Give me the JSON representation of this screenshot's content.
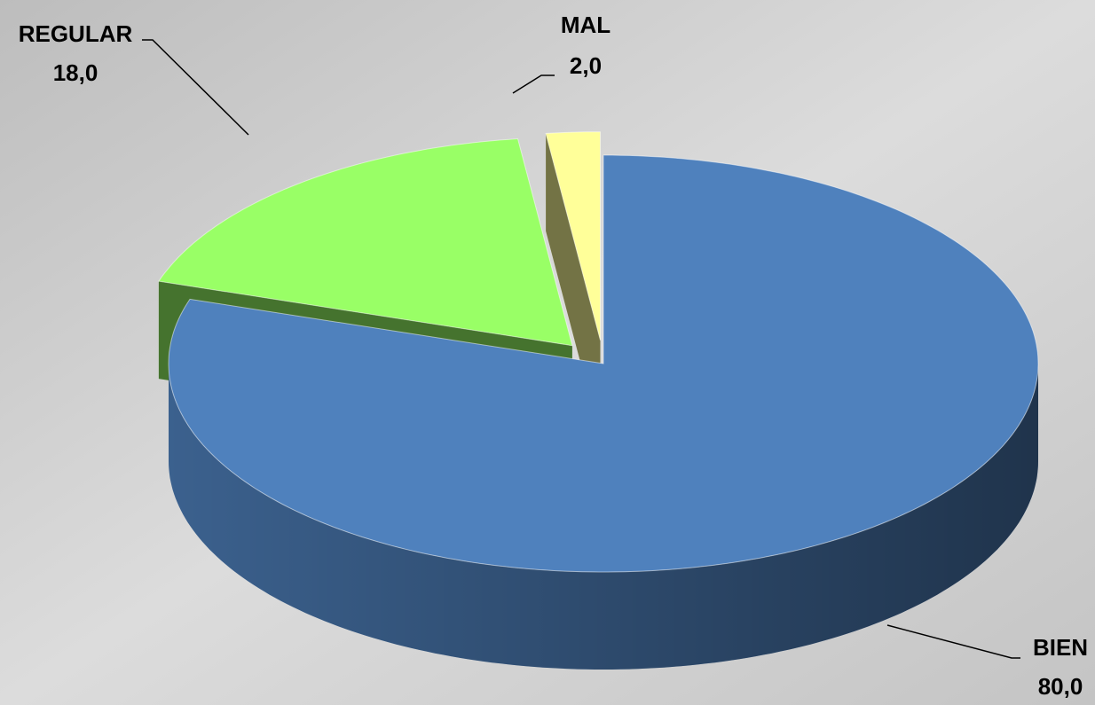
{
  "chart_data": {
    "type": "pie3d",
    "categories": [
      "BIEN",
      "REGULAR",
      "MAL"
    ],
    "values": [
      80,
      18,
      2
    ],
    "value_labels": [
      "80,0",
      "18,0",
      "2,0"
    ],
    "colors": [
      "#4f81bd",
      "#99ff66",
      "#ffff99"
    ]
  }
}
